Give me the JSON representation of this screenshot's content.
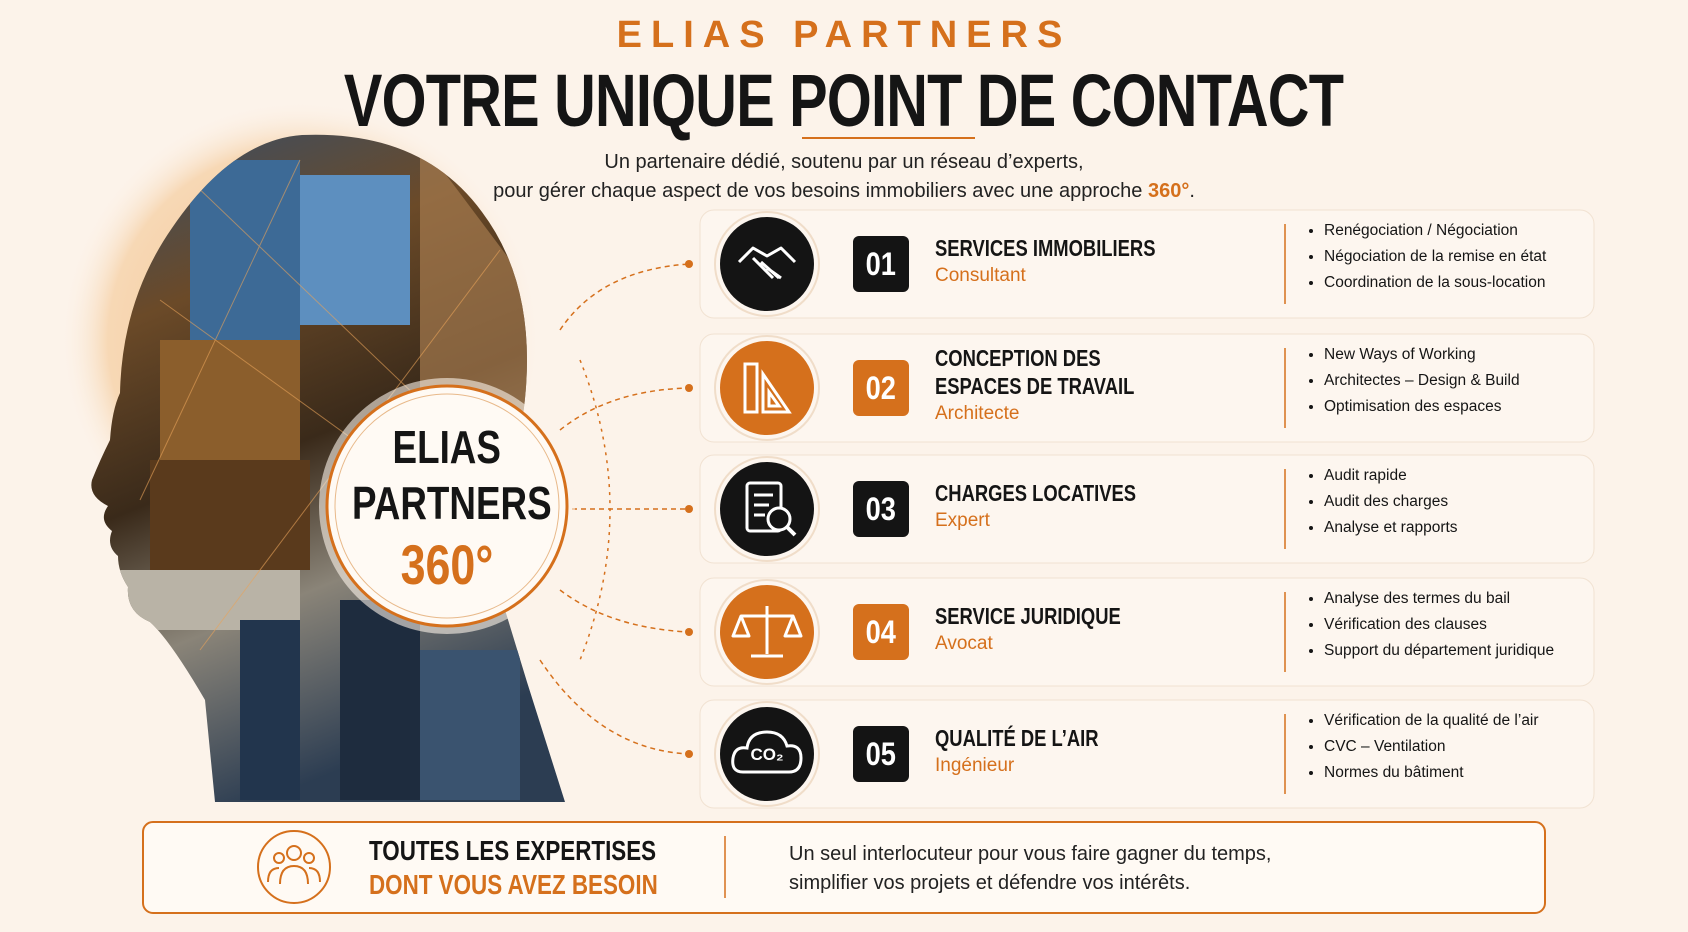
{
  "header": {
    "brand": "ELIAS PARTNERS",
    "title": "VOTRE UNIQUE POINT DE CONTACT",
    "subtitle_line1": "Un partenaire dédié, soutenu par un réseau d’experts,",
    "subtitle_line2": "pour gérer chaque aspect de vos besoins immobiliers avec une approche",
    "subtitle_highlight": "360°",
    "subtitle_end": "."
  },
  "center": {
    "line1": "ELIAS",
    "line2": "PARTNERS",
    "number": "360°"
  },
  "services": [
    {
      "number": "01",
      "title_lines": [
        "SERVICES IMMOBILIERS"
      ],
      "role": "Consultant",
      "bullets": [
        "Renégociation / Négociation",
        "Négociation de la remise en état",
        "Coordination de la sous-location"
      ]
    },
    {
      "number": "02",
      "title_lines": [
        "CONCEPTION DES",
        "ESPACES DE TRAVAIL"
      ],
      "role": "Architecte",
      "bullets": [
        "New Ways of Working",
        "Architectes – Design & Build",
        "Optimisation des espaces"
      ]
    },
    {
      "number": "03",
      "title_lines": [
        "CHARGES LOCATIVES"
      ],
      "role": "Expert",
      "bullets": [
        "Audit rapide",
        "Audit des charges",
        "Analyse et rapports"
      ]
    },
    {
      "number": "04",
      "title_lines": [
        "SERVICE JURIDIQUE"
      ],
      "role": "Avocat",
      "bullets": [
        "Analyse des termes du bail",
        "Vérification des clauses",
        "Support du département juridique"
      ]
    },
    {
      "number": "05",
      "title_lines": [
        "QUALITÉ DE L’AIR"
      ],
      "role": "Ingénieur",
      "icon_label": "CO₂",
      "bullets": [
        "Vérification de la qualité de l’air",
        "CVC – Ventilation",
        "Normes du bâtiment"
      ]
    }
  ],
  "footer": {
    "title_lines": [
      "TOUTES LES EXPERTISES",
      "DONT VOUS AVEZ BESOIN"
    ],
    "text_lines": [
      "Un seul interlocuteur pour vous faire gagner du temps,",
      "simplifier vos projets et défendre vos intérêts."
    ]
  }
}
